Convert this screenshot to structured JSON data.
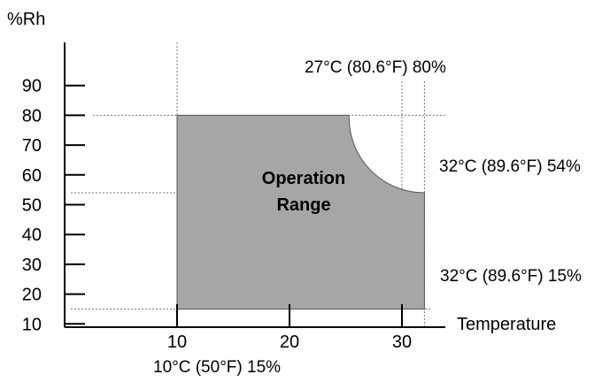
{
  "chart_data": {
    "type": "area",
    "title": "",
    "xlabel": "Temperature",
    "ylabel": "%Rh",
    "xlim": [
      0,
      32
    ],
    "ylim": [
      7,
      100
    ],
    "x_ticks": [
      10,
      20,
      30
    ],
    "y_ticks": [
      10,
      20,
      30,
      40,
      50,
      60,
      70,
      80,
      90
    ],
    "grid": false,
    "region": {
      "label_line1": "Operation",
      "label_line2": "Range",
      "fill_color": "#a6a6a6",
      "outline_color": "#555555",
      "boundary": [
        {
          "x": 10,
          "y": 15
        },
        {
          "x": 10,
          "y": 80
        },
        {
          "x": 25.3,
          "y": 80
        },
        {
          "x": 32,
          "y": 54
        },
        {
          "x": 32,
          "y": 15
        }
      ],
      "curve_center": {
        "x": 32,
        "y": 80
      },
      "notch_center": {
        "x": 32,
        "y": 80
      }
    },
    "annotations": [
      {
        "text": "27°C (80.6°F) 80%",
        "x": 27,
        "y": 80
      },
      {
        "text": "32°C (89.6°F) 54%",
        "x": 32,
        "y": 54
      },
      {
        "text": "32°C (89.6°F) 15%",
        "x": 32,
        "y": 15
      },
      {
        "text": "10°C (50°F) 15%",
        "x": 10,
        "y": 15
      }
    ],
    "guides": {
      "vertical_x": [
        10,
        30,
        32
      ],
      "horizontal_y": [
        80,
        54,
        15
      ]
    }
  }
}
